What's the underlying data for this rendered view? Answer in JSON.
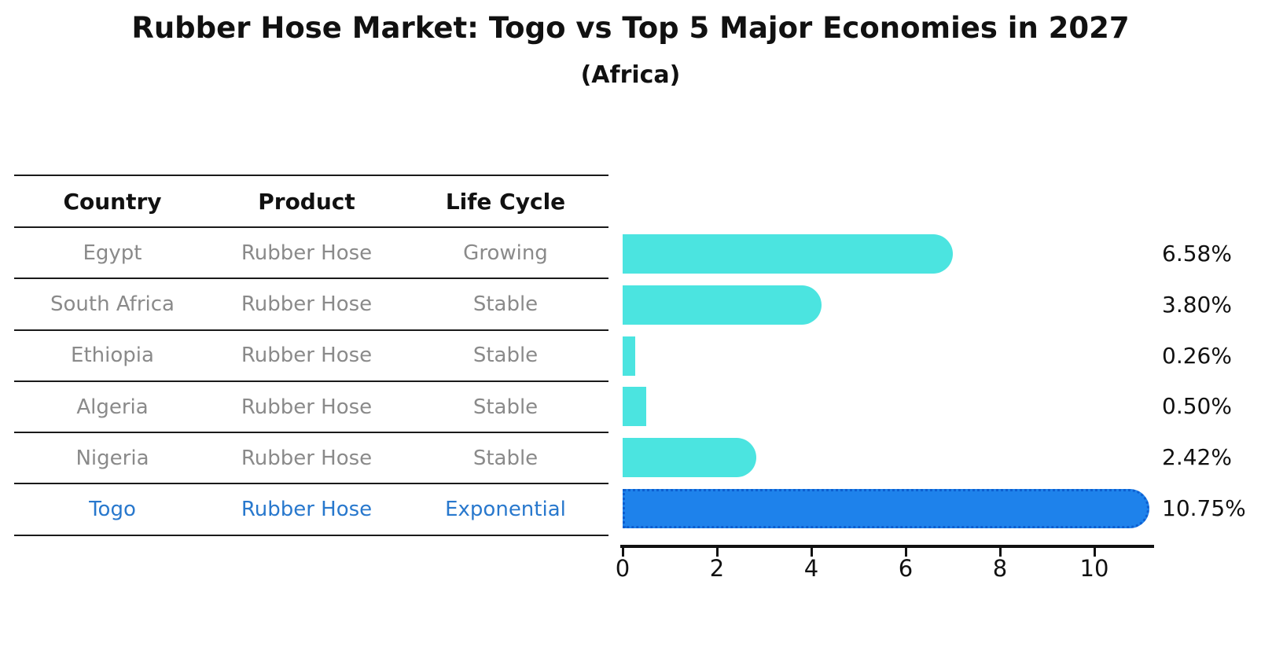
{
  "title": "Rubber Hose Market: Togo vs Top 5 Major Economies in 2027",
  "subtitle": "(Africa)",
  "table": {
    "headers": [
      "Country",
      "Product",
      "Life Cycle"
    ],
    "rows": [
      {
        "country": "Egypt",
        "product": "Rubber Hose",
        "life_cycle": "Growing",
        "highlight": false
      },
      {
        "country": "South Africa",
        "product": "Rubber Hose",
        "life_cycle": "Stable",
        "highlight": false
      },
      {
        "country": "Ethiopia",
        "product": "Rubber Hose",
        "life_cycle": "Stable",
        "highlight": false
      },
      {
        "country": "Algeria",
        "product": "Rubber Hose",
        "life_cycle": "Stable",
        "highlight": false
      },
      {
        "country": "Nigeria",
        "product": "Rubber Hose",
        "life_cycle": "Stable",
        "highlight": false
      },
      {
        "country": "Togo",
        "product": "Rubber Hose",
        "life_cycle": "Exponential",
        "highlight": true
      }
    ]
  },
  "chart_data": {
    "type": "bar",
    "orientation": "horizontal",
    "title": "Rubber Hose Market: Togo vs Top 5 Major Economies in 2027",
    "subtitle": "(Africa)",
    "categories": [
      "Egypt",
      "South Africa",
      "Ethiopia",
      "Algeria",
      "Nigeria",
      "Togo"
    ],
    "values": [
      6.58,
      3.8,
      0.26,
      0.5,
      2.42,
      10.75
    ],
    "value_labels": [
      "6.58%",
      "3.80%",
      "0.26%",
      "0.50%",
      "2.42%",
      "10.75%"
    ],
    "xlabel": "",
    "ylabel": "",
    "xlim": [
      0,
      11.3
    ],
    "x_ticks": [
      0,
      2,
      4,
      6,
      8,
      10
    ],
    "grid": false,
    "legend": false,
    "highlight_index": 5,
    "highlight_style": "dotted-border",
    "bar_color": "#4be4e0",
    "highlight_bar_color": "#1e82eb"
  },
  "colors": {
    "bar_cyan": "#4be4e0",
    "bar_blue": "#1e82eb",
    "highlight_text": "#2878cd",
    "row_text": "#8a8a8a",
    "heading_text": "#111111",
    "table_line": "#1a1a1a"
  }
}
